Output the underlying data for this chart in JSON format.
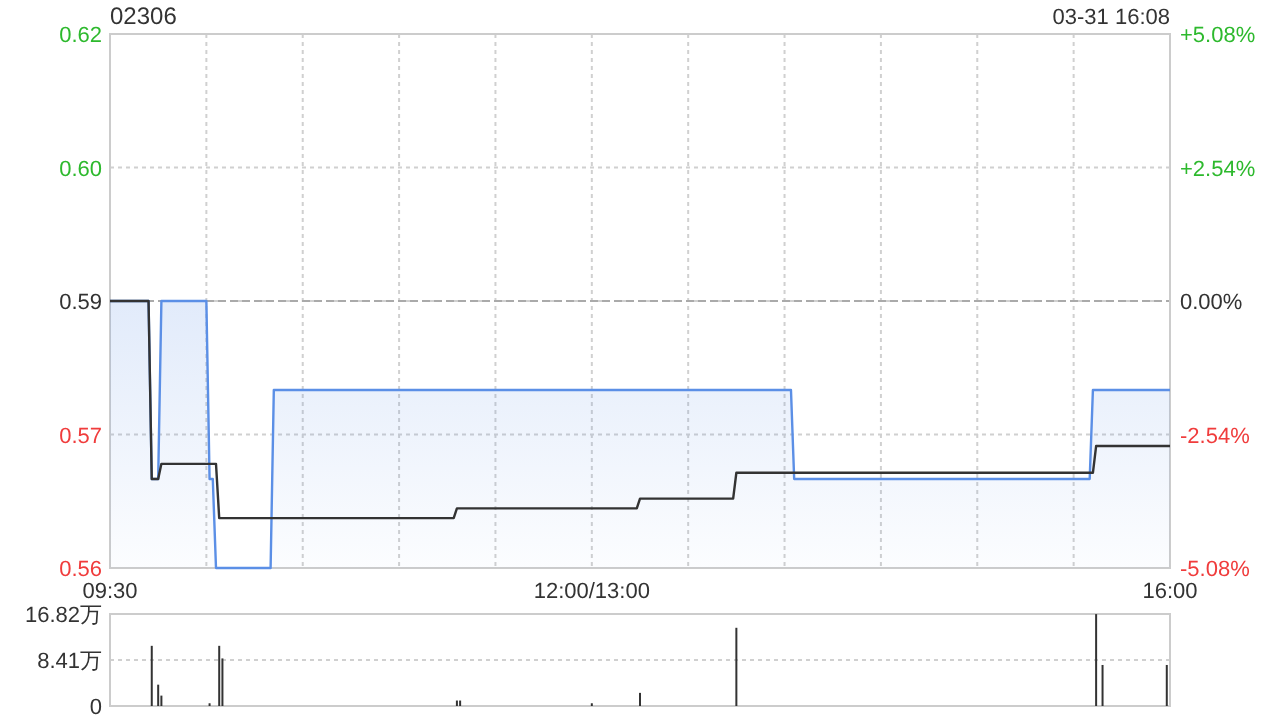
{
  "chart_data": [
    {
      "type": "line",
      "title": "02306",
      "annotations": [
        "03-31 16:08"
      ],
      "grid": true,
      "ref_lines": [
        {
          "axis": "y",
          "value": 0.59,
          "color": "#aaaaaa",
          "line_style": "dashed"
        }
      ],
      "categories": [
        "09:30",
        null,
        null,
        null,
        null,
        null,
        null,
        null,
        null,
        null,
        null,
        null,
        null,
        null,
        null,
        null,
        null,
        null,
        null,
        null,
        null,
        null,
        null,
        null,
        null,
        null,
        null,
        null,
        null,
        null,
        null,
        null,
        null,
        null,
        null,
        null,
        null,
        null,
        null,
        null,
        null,
        null,
        null,
        null,
        null,
        null,
        null,
        null,
        null,
        null,
        null,
        null,
        null,
        null,
        null,
        null,
        null,
        null,
        null,
        null,
        null,
        null,
        null,
        null,
        null,
        null,
        null,
        null,
        null,
        null,
        null,
        null,
        null,
        null,
        null,
        null,
        null,
        null,
        null,
        null,
        null,
        null,
        null,
        null,
        null,
        null,
        null,
        null,
        null,
        null,
        null,
        null,
        null,
        null,
        null,
        null,
        null,
        null,
        null,
        null,
        null,
        null,
        null,
        null,
        null,
        null,
        null,
        null,
        null,
        null,
        null,
        null,
        null,
        null,
        null,
        null,
        null,
        null,
        null,
        null,
        null,
        null,
        null,
        null,
        null,
        null,
        null,
        null,
        null,
        null,
        null,
        null,
        null,
        null,
        null,
        null,
        null,
        null,
        null,
        null,
        null,
        null,
        null,
        null,
        null,
        null,
        null,
        null,
        null,
        null,
        "12:00/13:00",
        null,
        null,
        null,
        null,
        null,
        null,
        null,
        null,
        null,
        null,
        null,
        null,
        null,
        null,
        null,
        null,
        null,
        null,
        null,
        null,
        null,
        null,
        null,
        null,
        null,
        null,
        null,
        null,
        null,
        null,
        null,
        null,
        null,
        null,
        null,
        null,
        null,
        null,
        null,
        null,
        null,
        null,
        null,
        null,
        null,
        null,
        null,
        null,
        null,
        null,
        null,
        null,
        null,
        null,
        null,
        null,
        null,
        null,
        null,
        null,
        null,
        null,
        null,
        null,
        null,
        null,
        null,
        null,
        null,
        null,
        null,
        null,
        null,
        null,
        null,
        null,
        null,
        null,
        null,
        null,
        null,
        null,
        null,
        null,
        null,
        null,
        null,
        null,
        null,
        null,
        null,
        null,
        null,
        null,
        null,
        null,
        null,
        null,
        null,
        null,
        null,
        null,
        null,
        null,
        null,
        null,
        null,
        null,
        null,
        null,
        null,
        null,
        null,
        null,
        null,
        null,
        null,
        null,
        null,
        null,
        null,
        null,
        null,
        null,
        null,
        null,
        null,
        null,
        null,
        null,
        null,
        null,
        null,
        null,
        null,
        null,
        null,
        null,
        null,
        null,
        null,
        null,
        null,
        null,
        null,
        null,
        null,
        null,
        null,
        null,
        null,
        null,
        null,
        null,
        null,
        null,
        null,
        null,
        null,
        null,
        null,
        null,
        null,
        null,
        null,
        null,
        null,
        null,
        null,
        null,
        null,
        null,
        null,
        null,
        null,
        null,
        null,
        null,
        null,
        "16:00"
      ],
      "ylim": [
        0.56,
        0.62
      ],
      "yticks": [
        0.56,
        {
          "value": 0.575,
          "label": "0.57"
        },
        0.59,
        {
          "value": 0.605,
          "label": "0.60"
        },
        0.62
      ],
      "y2lim": [
        -5.08,
        5.08
      ],
      "y2ticks": [
        {
          "value": -5.08,
          "label": "-5.08%"
        },
        {
          "value": -2.54,
          "label": "-2.54%"
        },
        {
          "value": 0,
          "label": "0.00%"
        },
        {
          "value": 2.54,
          "label": "+2.54%"
        },
        {
          "value": 5.08,
          "label": "+5.08%"
        }
      ],
      "series": [
        {
          "type": "area",
          "color": "#5b8fe6",
          "values": [
            0.59,
            0.59,
            0.59,
            0.59,
            0.59,
            0.59,
            0.59,
            0.59,
            0.59,
            0.59,
            0.59,
            0.59,
            0.59,
            0.57,
            0.57,
            0.57,
            0.59,
            0.59,
            0.59,
            0.59,
            0.59,
            0.59,
            0.59,
            0.59,
            0.59,
            0.59,
            0.59,
            0.59,
            0.59,
            0.59,
            0.59,
            0.57,
            0.57,
            0.56,
            0.56,
            0.56,
            0.56,
            0.56,
            0.56,
            0.56,
            0.56,
            0.56,
            0.56,
            0.56,
            0.56,
            0.56,
            0.56,
            0.56,
            0.56,
            0.56,
            0.56,
            0.58,
            0.58,
            0.58,
            0.58,
            0.58,
            0.58,
            0.58,
            0.58,
            0.58,
            0.58,
            0.58,
            0.58,
            0.58,
            0.58,
            0.58,
            0.58,
            0.58,
            0.58,
            0.58,
            0.58,
            0.58,
            0.58,
            0.58,
            0.58,
            0.58,
            0.58,
            0.58,
            0.58,
            0.58,
            0.58,
            0.58,
            0.58,
            0.58,
            0.58,
            0.58,
            0.58,
            0.58,
            0.58,
            0.58,
            0.58,
            0.58,
            0.58,
            0.58,
            0.58,
            0.58,
            0.58,
            0.58,
            0.58,
            0.58,
            0.58,
            0.58,
            0.58,
            0.58,
            0.58,
            0.58,
            0.58,
            0.58,
            0.58,
            0.58,
            0.58,
            0.58,
            0.58,
            0.58,
            0.58,
            0.58,
            0.58,
            0.58,
            0.58,
            0.58,
            0.58,
            0.58,
            0.58,
            0.58,
            0.58,
            0.58,
            0.58,
            0.58,
            0.58,
            0.58,
            0.58,
            0.58,
            0.58,
            0.58,
            0.58,
            0.58,
            0.58,
            0.58,
            0.58,
            0.58,
            0.58,
            0.58,
            0.58,
            0.58,
            0.58,
            0.58,
            0.58,
            0.58,
            0.58,
            0.58,
            0.58,
            0.58,
            0.58,
            0.58,
            0.58,
            0.58,
            0.58,
            0.58,
            0.58,
            0.58,
            0.58,
            0.58,
            0.58,
            0.58,
            0.58,
            0.58,
            0.58,
            0.58,
            0.58,
            0.58,
            0.58,
            0.58,
            0.58,
            0.58,
            0.58,
            0.58,
            0.58,
            0.58,
            0.58,
            0.58,
            0.58,
            0.58,
            0.58,
            0.58,
            0.58,
            0.58,
            0.58,
            0.58,
            0.58,
            0.58,
            0.58,
            0.58,
            0.58,
            0.58,
            0.58,
            0.58,
            0.58,
            0.58,
            0.58,
            0.58,
            0.58,
            0.58,
            0.58,
            0.58,
            0.58,
            0.58,
            0.58,
            0.58,
            0.58,
            0.58,
            0.58,
            0.58,
            0.58,
            0.57,
            0.57,
            0.57,
            0.57,
            0.57,
            0.57,
            0.57,
            0.57,
            0.57,
            0.57,
            0.57,
            0.57,
            0.57,
            0.57,
            0.57,
            0.57,
            0.57,
            0.57,
            0.57,
            0.57,
            0.57,
            0.57,
            0.57,
            0.57,
            0.57,
            0.57,
            0.57,
            0.57,
            0.57,
            0.57,
            0.57,
            0.57,
            0.57,
            0.57,
            0.57,
            0.57,
            0.57,
            0.57,
            0.57,
            0.57,
            0.57,
            0.57,
            0.57,
            0.57,
            0.57,
            0.57,
            0.57,
            0.57,
            0.57,
            0.57,
            0.57,
            0.57,
            0.57,
            0.57,
            0.57,
            0.57,
            0.57,
            0.57,
            0.57,
            0.57,
            0.57,
            0.57,
            0.57,
            0.57,
            0.57,
            0.57,
            0.57,
            0.57,
            0.57,
            0.57,
            0.57,
            0.57,
            0.57,
            0.57,
            0.57,
            0.57,
            0.57,
            0.57,
            0.57,
            0.57,
            0.57,
            0.57,
            0.57,
            0.57,
            0.57,
            0.57,
            0.57,
            0.57,
            0.57,
            0.57,
            0.57,
            0.57,
            0.57,
            0.58,
            0.58,
            0.58,
            0.58,
            0.58,
            0.58,
            0.58,
            0.58,
            0.58,
            0.58,
            0.58,
            0.58,
            0.58,
            0.58,
            0.58,
            0.58,
            0.58,
            0.58,
            0.58,
            0.58,
            0.58,
            0.58,
            0.58,
            0.58,
            0.58
          ]
        },
        {
          "color": "#333333",
          "values": [
            0.59,
            0.59,
            0.59,
            0.59,
            0.59,
            0.59,
            0.59,
            0.59,
            0.59,
            0.59,
            0.59,
            0.59,
            0.59,
            0.57,
            0.57,
            0.57,
            0.5717,
            0.5717,
            0.5717,
            0.5717,
            0.5717,
            0.5717,
            0.5717,
            0.5717,
            0.5717,
            0.5717,
            0.5717,
            0.5717,
            0.5717,
            0.5717,
            0.5717,
            0.5717,
            0.5717,
            0.5717,
            0.5656,
            0.5656,
            0.5656,
            0.5656,
            0.5656,
            0.5656,
            0.5656,
            0.5656,
            0.5656,
            0.5656,
            0.5656,
            0.5656,
            0.5656,
            0.5656,
            0.5656,
            0.5656,
            0.5656,
            0.5656,
            0.5656,
            0.5656,
            0.5656,
            0.5656,
            0.5656,
            0.5656,
            0.5656,
            0.5656,
            0.5656,
            0.5656,
            0.5656,
            0.5656,
            0.5656,
            0.5656,
            0.5656,
            0.5656,
            0.5656,
            0.5656,
            0.5656,
            0.5656,
            0.5656,
            0.5656,
            0.5656,
            0.5656,
            0.5656,
            0.5656,
            0.5656,
            0.5656,
            0.5656,
            0.5656,
            0.5656,
            0.5656,
            0.5656,
            0.5656,
            0.5656,
            0.5656,
            0.5656,
            0.5656,
            0.5656,
            0.5656,
            0.5656,
            0.5656,
            0.5656,
            0.5656,
            0.5656,
            0.5656,
            0.5656,
            0.5656,
            0.5656,
            0.5656,
            0.5656,
            0.5656,
            0.5656,
            0.5656,
            0.5656,
            0.5656,
            0.5667,
            0.5667,
            0.5667,
            0.5667,
            0.5667,
            0.5667,
            0.5667,
            0.5667,
            0.5667,
            0.5667,
            0.5667,
            0.5667,
            0.5667,
            0.5667,
            0.5667,
            0.5667,
            0.5667,
            0.5667,
            0.5667,
            0.5667,
            0.5667,
            0.5667,
            0.5667,
            0.5667,
            0.5667,
            0.5667,
            0.5667,
            0.5667,
            0.5667,
            0.5667,
            0.5667,
            0.5667,
            0.5667,
            0.5667,
            0.5667,
            0.5667,
            0.5667,
            0.5667,
            0.5667,
            0.5667,
            0.5667,
            0.5667,
            0.5667,
            0.5667,
            0.5667,
            0.5667,
            0.5667,
            0.5667,
            0.5667,
            0.5667,
            0.5667,
            0.5667,
            0.5667,
            0.5667,
            0.5667,
            0.5667,
            0.5667,
            0.5678,
            0.5678,
            0.5678,
            0.5678,
            0.5678,
            0.5678,
            0.5678,
            0.5678,
            0.5678,
            0.5678,
            0.5678,
            0.5678,
            0.5678,
            0.5678,
            0.5678,
            0.5678,
            0.5678,
            0.5678,
            0.5678,
            0.5678,
            0.5678,
            0.5678,
            0.5678,
            0.5678,
            0.5678,
            0.5678,
            0.5678,
            0.5678,
            0.5678,
            0.5678,
            0.5707,
            0.5707,
            0.5707,
            0.5707,
            0.5707,
            0.5707,
            0.5707,
            0.5707,
            0.5707,
            0.5707,
            0.5707,
            0.5707,
            0.5707,
            0.5707,
            0.5707,
            0.5707,
            0.5707,
            0.5707,
            0.5707,
            0.5707,
            0.5707,
            0.5707,
            0.5707,
            0.5707,
            0.5707,
            0.5707,
            0.5707,
            0.5707,
            0.5707,
            0.5707,
            0.5707,
            0.5707,
            0.5707,
            0.5707,
            0.5707,
            0.5707,
            0.5707,
            0.5707,
            0.5707,
            0.5707,
            0.5707,
            0.5707,
            0.5707,
            0.5707,
            0.5707,
            0.5707,
            0.5707,
            0.5707,
            0.5707,
            0.5707,
            0.5707,
            0.5707,
            0.5707,
            0.5707,
            0.5707,
            0.5707,
            0.5707,
            0.5707,
            0.5707,
            0.5707,
            0.5707,
            0.5707,
            0.5707,
            0.5707,
            0.5707,
            0.5707,
            0.5707,
            0.5707,
            0.5707,
            0.5707,
            0.5707,
            0.5707,
            0.5707,
            0.5707,
            0.5707,
            0.5707,
            0.5707,
            0.5707,
            0.5707,
            0.5707,
            0.5707,
            0.5707,
            0.5707,
            0.5707,
            0.5707,
            0.5707,
            0.5707,
            0.5707,
            0.5707,
            0.5707,
            0.5707,
            0.5707,
            0.5707,
            0.5707,
            0.5707,
            0.5707,
            0.5707,
            0.5707,
            0.5707,
            0.5707,
            0.5707,
            0.5707,
            0.5707,
            0.5707,
            0.5707,
            0.5707,
            0.5707,
            0.5707,
            0.5707,
            0.5707,
            0.5707,
            0.5707,
            0.5737,
            0.5737,
            0.5737,
            0.5737,
            0.5737,
            0.5737,
            0.5737,
            0.5737,
            0.5737,
            0.5737,
            0.5737,
            0.5737,
            0.5737,
            0.5737,
            0.5737,
            0.5737,
            0.5737,
            0.5737,
            0.5737,
            0.5737,
            0.5737,
            0.5737,
            0.5737,
            0.5737
          ]
        }
      ]
    },
    {
      "type": "bar",
      "grid": "y",
      "tick_labels": "y",
      "ylim": [
        0,
        16.82
      ],
      "categories": [
        null,
        null,
        null,
        null,
        null,
        null,
        null,
        null,
        null,
        null,
        null,
        null,
        null,
        null,
        null,
        null,
        null,
        null,
        null,
        null,
        null,
        null,
        null,
        null,
        null,
        null,
        null,
        null,
        null,
        null,
        null,
        null,
        null,
        null,
        null,
        null,
        null,
        null,
        null,
        null,
        null,
        null,
        null,
        null,
        null,
        null,
        null,
        null,
        null,
        null,
        null,
        null,
        null,
        null,
        null,
        null,
        null,
        null,
        null,
        null,
        null,
        null,
        null,
        null,
        null,
        null,
        null,
        null,
        null,
        null,
        null,
        null,
        null,
        null,
        null,
        null,
        null,
        null,
        null,
        null,
        null,
        null,
        null,
        null,
        null,
        null,
        null,
        null,
        null,
        null,
        null,
        null,
        null,
        null,
        null,
        null,
        null,
        null,
        null,
        null,
        null,
        null,
        null,
        null,
        null,
        null,
        null,
        null,
        null,
        null,
        null,
        null,
        null,
        null,
        null,
        null,
        null,
        null,
        null,
        null,
        null,
        null,
        null,
        null,
        null,
        null,
        null,
        null,
        null,
        null,
        null,
        null,
        null,
        null,
        null,
        null,
        null,
        null,
        null,
        null,
        null,
        null,
        null,
        null,
        null,
        null,
        null,
        null,
        null,
        null,
        null,
        null,
        null,
        null,
        null,
        null,
        null,
        null,
        null,
        null,
        null,
        null,
        null,
        null,
        null,
        null,
        null,
        null,
        null,
        null,
        null,
        null,
        null,
        null,
        null,
        null,
        null,
        null,
        null,
        null,
        null,
        null,
        null,
        null,
        null,
        null,
        null,
        null,
        null,
        null,
        null,
        null,
        null,
        null,
        null,
        null,
        null,
        null,
        null,
        null,
        null,
        null,
        null,
        null,
        null,
        null,
        null,
        null,
        null,
        null,
        null,
        null,
        null,
        null,
        null,
        null,
        null,
        null,
        null,
        null,
        null,
        null,
        null,
        null,
        null,
        null,
        null,
        null,
        null,
        null,
        null,
        null,
        null,
        null,
        null,
        null,
        null,
        null,
        null,
        null,
        null,
        null,
        null,
        null,
        null,
        null,
        null,
        null,
        null,
        null,
        null,
        null,
        null,
        null,
        null,
        null,
        null,
        null,
        null,
        null,
        null,
        null,
        null,
        null,
        null,
        null,
        null,
        null,
        null,
        null,
        null,
        null,
        null,
        null,
        null,
        null,
        null,
        null,
        null,
        null,
        null,
        null,
        null,
        null,
        null,
        null,
        null,
        null,
        null,
        null,
        null,
        null,
        null,
        null,
        null,
        null,
        null,
        null,
        null,
        null,
        null,
        null,
        null,
        null,
        null,
        null,
        null,
        null,
        null,
        null,
        null,
        null,
        null,
        null,
        null,
        null,
        null,
        null,
        null,
        null,
        null,
        null,
        null,
        null,
        null,
        null,
        null,
        null,
        null,
        null,
        null
      ],
      "yticks": [
        0,
        {
          "value": 8.41,
          "label": "8.41万"
        },
        {
          "value": 16.82,
          "label": "16.82万"
        }
      ],
      "series": [
        {
          "color": "#333333",
          "values": [
            null,
            null,
            null,
            null,
            null,
            null,
            null,
            null,
            null,
            null,
            null,
            null,
            null,
            11.0,
            null,
            3.9,
            1.9,
            null,
            null,
            null,
            null,
            null,
            null,
            null,
            null,
            null,
            null,
            null,
            null,
            null,
            null,
            0.5,
            null,
            null,
            11.0,
            8.7,
            null,
            null,
            null,
            null,
            null,
            null,
            null,
            null,
            null,
            null,
            null,
            null,
            null,
            null,
            null,
            null,
            null,
            null,
            null,
            null,
            null,
            null,
            null,
            null,
            null,
            null,
            null,
            null,
            null,
            null,
            null,
            null,
            null,
            null,
            null,
            null,
            null,
            null,
            null,
            null,
            null,
            null,
            null,
            null,
            null,
            null,
            null,
            null,
            null,
            null,
            null,
            null,
            null,
            null,
            null,
            null,
            null,
            null,
            null,
            null,
            null,
            null,
            null,
            null,
            null,
            null,
            null,
            null,
            null,
            null,
            null,
            null,
            1.0,
            1.0,
            null,
            null,
            null,
            null,
            null,
            null,
            null,
            null,
            null,
            null,
            null,
            null,
            null,
            null,
            null,
            null,
            null,
            null,
            null,
            null,
            null,
            null,
            null,
            null,
            null,
            null,
            null,
            null,
            null,
            null,
            null,
            null,
            null,
            null,
            null,
            null,
            null,
            null,
            null,
            null,
            0.5,
            null,
            null,
            null,
            null,
            null,
            null,
            null,
            null,
            null,
            null,
            null,
            null,
            null,
            null,
            2.4,
            null,
            null,
            null,
            null,
            null,
            null,
            null,
            null,
            null,
            null,
            null,
            null,
            null,
            null,
            null,
            null,
            null,
            null,
            null,
            null,
            null,
            null,
            null,
            null,
            null,
            null,
            null,
            null,
            null,
            14.3,
            null,
            null,
            null,
            null,
            null,
            null,
            null,
            null,
            null,
            null,
            null,
            null,
            null,
            null,
            null,
            null,
            null,
            null,
            null,
            null,
            null,
            null,
            null,
            null,
            null,
            null,
            null,
            null,
            null,
            null,
            null,
            null,
            null,
            null,
            null,
            null,
            null,
            null,
            null,
            null,
            null,
            null,
            null,
            null,
            null,
            null,
            null,
            null,
            null,
            null,
            null,
            null,
            null,
            null,
            null,
            null,
            null,
            null,
            null,
            null,
            null,
            null,
            null,
            null,
            null,
            null,
            null,
            null,
            null,
            null,
            null,
            null,
            null,
            null,
            null,
            null,
            null,
            null,
            null,
            null,
            null,
            null,
            null,
            null,
            null,
            null,
            null,
            null,
            null,
            null,
            null,
            null,
            null,
            null,
            null,
            null,
            null,
            null,
            null,
            null,
            null,
            null,
            null,
            null,
            null,
            null,
            null,
            null,
            null,
            null,
            null,
            16.8,
            null,
            7.5,
            null,
            null,
            null,
            null,
            null,
            null,
            null,
            null,
            null,
            null,
            null,
            null,
            null,
            null,
            null,
            null,
            null,
            null,
            null,
            7.5,
            null
          ]
        }
      ]
    }
  ]
}
